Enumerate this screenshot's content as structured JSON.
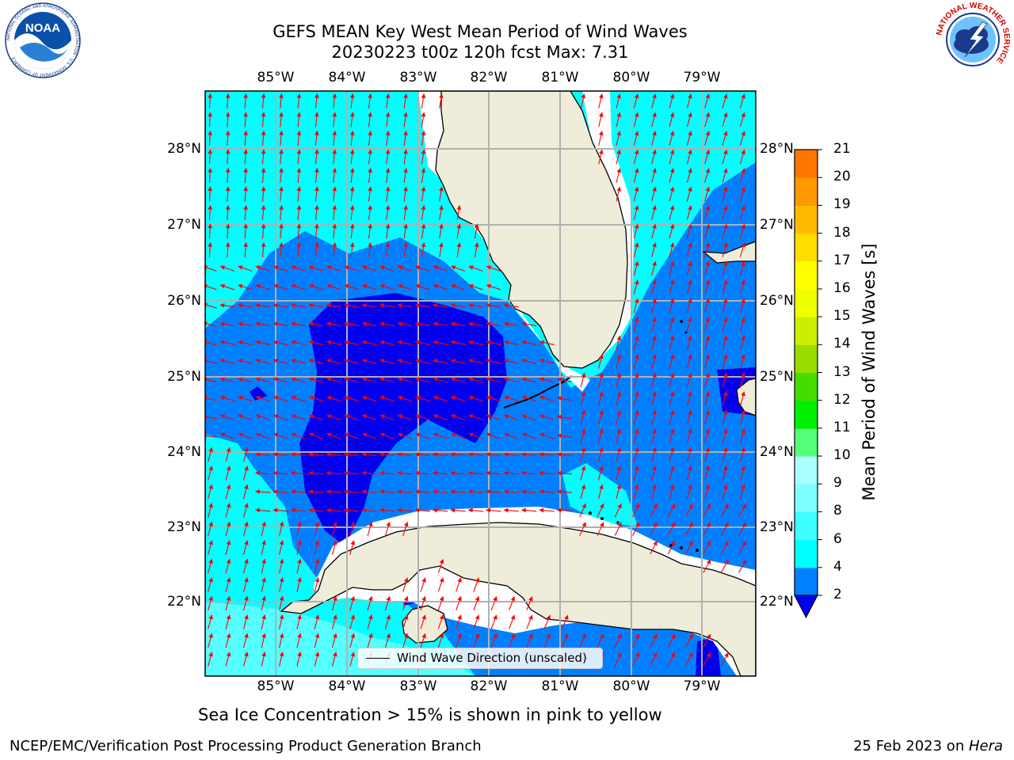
{
  "header": {
    "title_line1": "GEFS MEAN Key West Mean Period of Wind Waves",
    "title_line2": "20230223 t00z 120h fcst   Max: 7.31"
  },
  "logos": {
    "noaa_text": "NOAA",
    "noaa_ring": "NATIONAL OCEANIC AND ATMOSPHERIC ADMINISTRATION · U.S. DEPARTMENT OF COMMERCE",
    "nws_ring": "NATIONAL WEATHER SERVICE"
  },
  "map": {
    "lon_labels": [
      "85°W",
      "84°W",
      "83°W",
      "82°W",
      "81°W",
      "80°W",
      "79°W"
    ],
    "lat_labels": [
      "28°N",
      "27°N",
      "26°N",
      "25°N",
      "24°N",
      "23°N",
      "22°N"
    ],
    "legend_label": "Wind Wave Direction (unscaled)",
    "colors": {
      "land": "#efedda",
      "coast": "#000000",
      "grid": "#b0b0b0",
      "arrow": "#ff0000",
      "c_2_4": "#0080ff",
      "c_4_6": "#00ffff",
      "c_6_8": "#55ffff",
      "c_below_2": "#0000ee"
    }
  },
  "colorbar": {
    "title": "Mean Period of Wind Waves [s]",
    "ticks": [
      "2",
      "4",
      "6",
      "8",
      "9",
      "10",
      "11",
      "12",
      "13",
      "14",
      "15",
      "16",
      "17",
      "18",
      "19",
      "20",
      "21"
    ],
    "colors": [
      "#0080ff",
      "#00ffff",
      "#3effff",
      "#7fffff",
      "#aaffff",
      "#55ff77",
      "#00ee00",
      "#44dd00",
      "#99dd00",
      "#ccee00",
      "#eeff00",
      "#ffff00",
      "#ffdd00",
      "#ffbb00",
      "#ff9900",
      "#ff7700",
      "#ff4400",
      "#ff1100"
    ],
    "under_color": "#0000ee"
  },
  "notes": {
    "sea_ice": "Sea Ice Concentration > 15% is shown in pink to yellow"
  },
  "footer": {
    "left": "NCEP/EMC/Verification Post Processing Product Generation Branch",
    "right_prefix": "25 Feb 2023 on ",
    "right_host": "Hera"
  }
}
